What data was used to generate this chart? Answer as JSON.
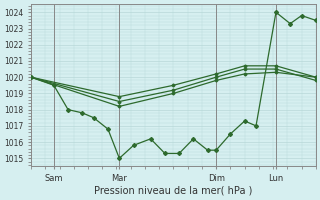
{
  "title": "",
  "xlabel": "Pression niveau de la mer( hPa )",
  "bg_color": "#d6eff0",
  "line_color": "#2d6a2d",
  "grid_color": "#b8d8d8",
  "yticks": [
    1015,
    1016,
    1017,
    1018,
    1019,
    1020,
    1021,
    1022,
    1023,
    1024
  ],
  "xtick_labels": [
    "Sam",
    "Mar",
    "Dim",
    "Lun"
  ],
  "xtick_positions": [
    0.08,
    0.31,
    0.65,
    0.86
  ],
  "vline_positions": [
    0.08,
    0.31,
    0.65,
    0.86
  ],
  "ylim": [
    1014.5,
    1024.5
  ],
  "xlim": [
    0.0,
    1.0
  ],
  "series": [
    {
      "x": [
        0.0,
        0.31,
        0.5,
        0.65,
        0.75,
        0.86,
        1.0
      ],
      "y": [
        1020,
        1018.2,
        1019.0,
        1019.8,
        1020.2,
        1020.3,
        1020.0
      ]
    },
    {
      "x": [
        0.0,
        0.31,
        0.5,
        0.65,
        0.75,
        0.86,
        1.0
      ],
      "y": [
        1020,
        1018.5,
        1019.2,
        1020.0,
        1020.5,
        1020.5,
        1019.8
      ]
    },
    {
      "x": [
        0.0,
        0.31,
        0.5,
        0.65,
        0.75,
        0.86,
        1.0
      ],
      "y": [
        1020,
        1018.8,
        1019.5,
        1020.2,
        1020.7,
        1020.7,
        1020.0
      ]
    },
    {
      "x": [
        0.0,
        0.08,
        0.13,
        0.18,
        0.22,
        0.27,
        0.31,
        0.36,
        0.42,
        0.47,
        0.52,
        0.57,
        0.62,
        0.65,
        0.7,
        0.75,
        0.79,
        0.86,
        0.91,
        0.95,
        1.0
      ],
      "y": [
        1020,
        1019.5,
        1018.0,
        1017.8,
        1017.5,
        1016.8,
        1015.0,
        1015.8,
        1016.2,
        1015.3,
        1015.3,
        1016.2,
        1015.5,
        1015.5,
        1016.5,
        1017.3,
        1017.0,
        1024.0,
        1023.3,
        1023.8,
        1023.5
      ]
    }
  ]
}
